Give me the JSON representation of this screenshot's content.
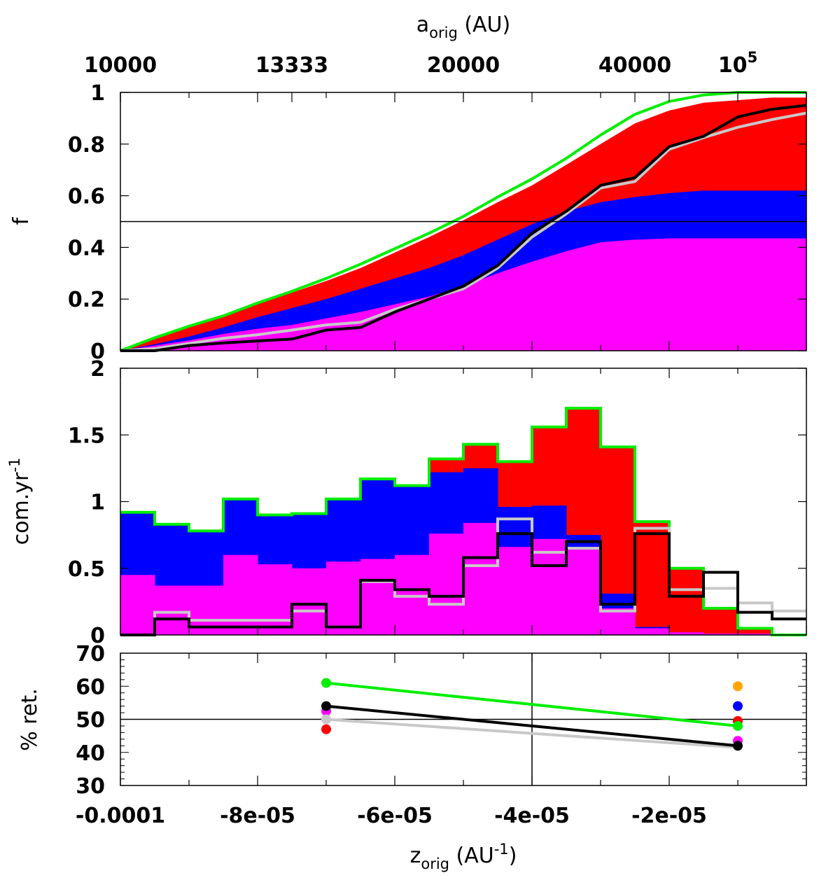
{
  "chart_data": [
    {
      "type": "area",
      "panel": "cumulative",
      "ylabel": "f",
      "xlim": [
        -0.0001,
        0
      ],
      "ylim": [
        0,
        1
      ],
      "yticks": [
        0,
        0.2,
        0.4,
        0.6,
        0.8,
        1
      ],
      "ytick_labels": [
        "0",
        "0.2",
        "0.4",
        "0.6",
        "0.8",
        "1"
      ],
      "top_axis": {
        "label_main": "a",
        "label_sub": "orig",
        "label_unit": " (AU)",
        "ticks": [
          {
            "z": -0.0001,
            "label": "10000"
          },
          {
            "z": -7.5e-05,
            "label": "13333"
          },
          {
            "z": -5e-05,
            "label": "20000"
          },
          {
            "z": -2.5e-05,
            "label": "40000"
          },
          {
            "z": -1e-05,
            "label": "10",
            "sup": "5"
          }
        ]
      },
      "hline": 0.5,
      "x": [
        -0.0001,
        -9.5e-05,
        -9e-05,
        -8.5e-05,
        -8e-05,
        -7.5e-05,
        -7e-05,
        -6.5e-05,
        -6e-05,
        -5.5e-05,
        -5e-05,
        -4.5e-05,
        -4e-05,
        -3.5e-05,
        -3e-05,
        -2.5e-05,
        -2e-05,
        -1.5e-05,
        -1e-05,
        -5e-06,
        0
      ],
      "series": [
        {
          "name": "magenta",
          "color": "#ff00ff",
          "fill": true,
          "values": [
            0,
            0.02,
            0.04,
            0.065,
            0.085,
            0.1,
            0.125,
            0.15,
            0.18,
            0.21,
            0.25,
            0.3,
            0.345,
            0.385,
            0.42,
            0.43,
            0.435,
            0.435,
            0.435,
            0.435,
            0.435
          ]
        },
        {
          "name": "blue",
          "color": "#0000ff",
          "fill": true,
          "values": [
            0,
            0.025,
            0.055,
            0.09,
            0.13,
            0.165,
            0.2,
            0.24,
            0.28,
            0.32,
            0.37,
            0.43,
            0.49,
            0.54,
            0.575,
            0.595,
            0.61,
            0.62,
            0.62,
            0.62,
            0.62
          ]
        },
        {
          "name": "red",
          "color": "#ff0000",
          "fill": true,
          "values": [
            0,
            0.045,
            0.09,
            0.13,
            0.18,
            0.225,
            0.27,
            0.32,
            0.38,
            0.44,
            0.505,
            0.575,
            0.64,
            0.72,
            0.8,
            0.88,
            0.93,
            0.96,
            0.97,
            0.98,
            0.98
          ]
        },
        {
          "name": "green",
          "color": "#00ee00",
          "fill": false,
          "values": [
            0,
            0.05,
            0.095,
            0.135,
            0.185,
            0.23,
            0.28,
            0.335,
            0.395,
            0.455,
            0.52,
            0.595,
            0.665,
            0.745,
            0.835,
            0.915,
            0.965,
            0.99,
            1.0,
            1.0,
            1.0
          ]
        },
        {
          "name": "gray",
          "color": "#c8c8c8",
          "fill": false,
          "values": [
            0,
            0.008,
            0.028,
            0.048,
            0.062,
            0.08,
            0.1,
            0.11,
            0.16,
            0.2,
            0.24,
            0.32,
            0.44,
            0.53,
            0.63,
            0.655,
            0.78,
            0.825,
            0.865,
            0.895,
            0.92
          ]
        },
        {
          "name": "black",
          "color": "#000000",
          "fill": false,
          "values": [
            0,
            0,
            0.02,
            0.03,
            0.038,
            0.045,
            0.08,
            0.09,
            0.15,
            0.2,
            0.25,
            0.33,
            0.455,
            0.54,
            0.64,
            0.67,
            0.79,
            0.83,
            0.905,
            0.935,
            0.95
          ]
        }
      ]
    },
    {
      "type": "bar",
      "panel": "rate",
      "ylabel_main": "com.yr",
      "ylabel_sup": "-1",
      "xlim": [
        -0.0001,
        0
      ],
      "ylim": [
        0,
        2
      ],
      "yticks": [
        0,
        0.5,
        1,
        1.5,
        2
      ],
      "ytick_labels": [
        "0",
        "0.5",
        "1",
        "1.5",
        "2"
      ],
      "bin_edges": [
        -0.0001,
        -9.5e-05,
        -9e-05,
        -8.5e-05,
        -8e-05,
        -7.5e-05,
        -7e-05,
        -6.5e-05,
        -6e-05,
        -5.5e-05,
        -5e-05,
        -4.5e-05,
        -4e-05,
        -3.5e-05,
        -3e-05,
        -2.5e-05,
        -2e-05,
        -1.5e-05,
        -1e-05,
        -5e-06,
        0
      ],
      "series": [
        {
          "name": "magenta",
          "color": "#ff00ff",
          "stacked": true,
          "values": [
            0.45,
            0.37,
            0.37,
            0.6,
            0.53,
            0.5,
            0.55,
            0.57,
            0.6,
            0.76,
            0.84,
            0.66,
            0.72,
            0.64,
            0.2,
            0.05,
            0.02,
            0.01,
            0.01,
            0.0
          ]
        },
        {
          "name": "blue",
          "color": "#0000ff",
          "stacked": true,
          "values": [
            0.92,
            0.83,
            0.78,
            1.02,
            0.9,
            0.91,
            1.02,
            1.17,
            1.12,
            1.22,
            1.25,
            0.96,
            0.97,
            0.75,
            0.31,
            0.06,
            0.02,
            0.01,
            0.01,
            0.0
          ]
        },
        {
          "name": "red",
          "color": "#ff0000",
          "stacked": true,
          "values": [
            0.92,
            0.83,
            0.78,
            1.02,
            0.9,
            0.91,
            1.02,
            1.17,
            1.12,
            1.32,
            1.43,
            1.3,
            1.56,
            1.7,
            1.41,
            0.85,
            0.5,
            0.2,
            0.05,
            0.0
          ]
        },
        {
          "name": "green",
          "color": "#00ee00",
          "stacked": false,
          "values": [
            0.92,
            0.83,
            0.78,
            1.02,
            0.9,
            0.91,
            1.02,
            1.17,
            1.12,
            1.32,
            1.43,
            1.3,
            1.56,
            1.7,
            1.41,
            0.85,
            0.5,
            0.2,
            0.05,
            0.0
          ]
        },
        {
          "name": "gray",
          "color": "#c8c8c8",
          "stacked": false,
          "values": [
            0.0,
            0.17,
            0.11,
            0.11,
            0.11,
            0.18,
            0.06,
            0.4,
            0.29,
            0.23,
            0.52,
            0.87,
            0.62,
            0.65,
            0.18,
            0.8,
            0.34,
            0.35,
            0.24,
            0.18
          ]
        },
        {
          "name": "black",
          "color": "#000000",
          "stacked": false,
          "values": [
            0.0,
            0.12,
            0.06,
            0.06,
            0.06,
            0.23,
            0.06,
            0.41,
            0.34,
            0.29,
            0.58,
            0.76,
            0.52,
            0.7,
            0.23,
            0.76,
            0.29,
            0.47,
            0.17,
            0.12
          ]
        }
      ]
    },
    {
      "type": "scatter",
      "panel": "retention",
      "ylabel": "% ret.",
      "xlabel_main": "z",
      "xlabel_sub": "orig",
      "xlabel_unit_open": " (AU",
      "xlabel_unit_sup": "-1",
      "xlabel_unit_close": ")",
      "xlim": [
        -0.0001,
        0
      ],
      "ylim": [
        30,
        70
      ],
      "yticks": [
        30,
        40,
        50,
        60,
        70
      ],
      "ytick_labels": [
        "30",
        "40",
        "50",
        "60",
        "70"
      ],
      "xticks": [
        -0.0001,
        -8e-05,
        -6e-05,
        -4e-05,
        -2e-05
      ],
      "xtick_labels": [
        "-0.0001",
        "-8e-05",
        "-6e-05",
        "-4e-05",
        "-2e-05"
      ],
      "hline": 50,
      "vline": -4e-05,
      "lines": [
        {
          "name": "green",
          "color": "#00ee00",
          "x": [
            -7e-05,
            -1e-05
          ],
          "y": [
            61,
            48
          ]
        },
        {
          "name": "gray",
          "color": "#c8c8c8",
          "x": [
            -7e-05,
            -1e-05
          ],
          "y": [
            50,
            41.5
          ]
        },
        {
          "name": "black",
          "color": "#000000",
          "x": [
            -7e-05,
            -1e-05
          ],
          "y": [
            54,
            42
          ]
        }
      ],
      "points": [
        {
          "name": "red",
          "color": "#ff0000",
          "x": -7e-05,
          "y": 47
        },
        {
          "name": "magenta",
          "color": "#ff00ff",
          "x": -7e-05,
          "y": 52.5
        },
        {
          "name": "gray",
          "color": "#c8c8c8",
          "x": -7e-05,
          "y": 50
        },
        {
          "name": "green",
          "color": "#00ee00",
          "x": -7e-05,
          "y": 61
        },
        {
          "name": "black",
          "color": "#000000",
          "x": -7e-05,
          "y": 54
        },
        {
          "name": "orange",
          "color": "#ffa500",
          "x": -1e-05,
          "y": 60
        },
        {
          "name": "blue",
          "color": "#0000ff",
          "x": -1e-05,
          "y": 54
        },
        {
          "name": "red",
          "color": "#ff0000",
          "x": -1e-05,
          "y": 49.5
        },
        {
          "name": "green",
          "color": "#00ee00",
          "x": -1e-05,
          "y": 48
        },
        {
          "name": "magenta",
          "color": "#ff00ff",
          "x": -1e-05,
          "y": 43.5
        },
        {
          "name": "black",
          "color": "#000000",
          "x": -1e-05,
          "y": 42
        }
      ]
    }
  ]
}
